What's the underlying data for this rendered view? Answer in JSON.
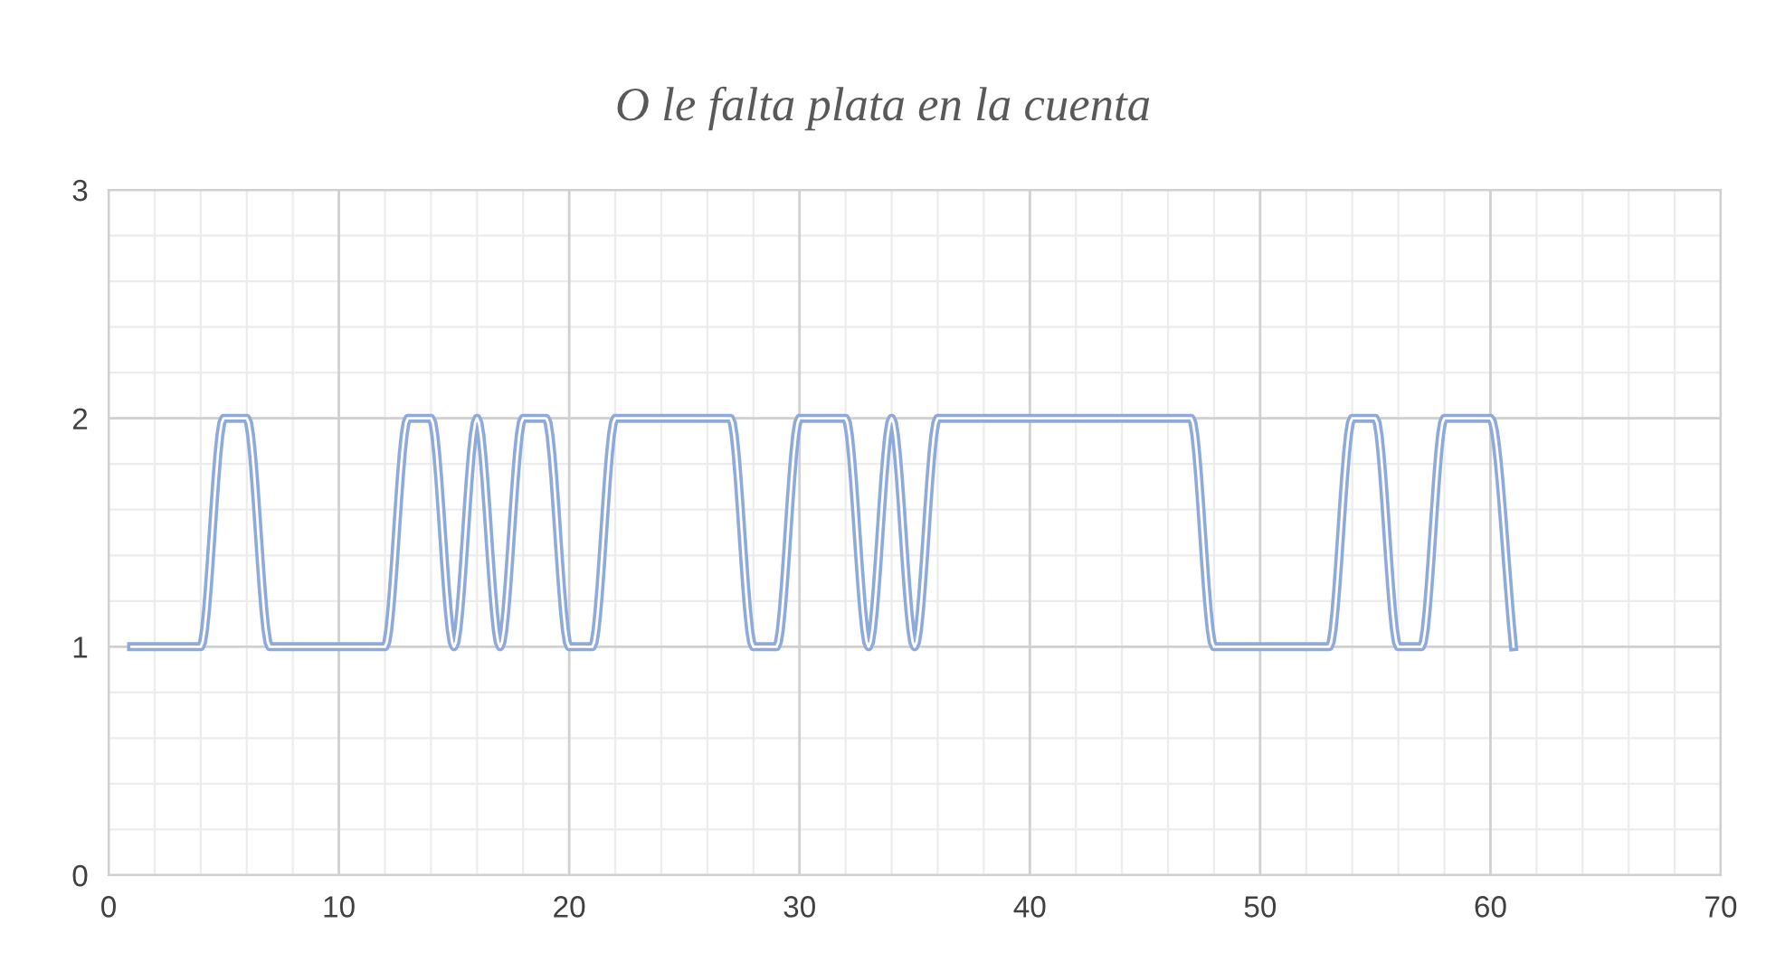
{
  "chart_data": {
    "type": "line",
    "title": "O le falta plata en la cuenta",
    "x": [
      1,
      2,
      3,
      4,
      5,
      6,
      7,
      8,
      9,
      10,
      11,
      12,
      13,
      14,
      15,
      16,
      17,
      18,
      19,
      20,
      21,
      22,
      23,
      24,
      25,
      26,
      27,
      28,
      29,
      30,
      31,
      32,
      33,
      34,
      35,
      36,
      37,
      38,
      39,
      40,
      41,
      42,
      43,
      44,
      45,
      46,
      47,
      48,
      49,
      50,
      51,
      52,
      53,
      54,
      55,
      56,
      57,
      58,
      59,
      60,
      61
    ],
    "series": [
      {
        "color": "#8eaadb",
        "values": [
          1,
          1,
          1,
          1,
          2,
          2,
          1,
          1,
          1,
          1,
          1,
          1,
          2,
          2,
          1,
          2,
          1,
          2,
          2,
          1,
          1,
          2,
          2,
          2,
          2,
          2,
          2,
          1,
          1,
          2,
          2,
          2,
          1,
          2,
          1,
          2,
          2,
          2,
          2,
          2,
          2,
          2,
          2,
          2,
          2,
          2,
          2,
          1,
          1,
          1,
          1,
          1,
          1,
          2,
          2,
          1,
          1,
          2,
          2,
          2,
          1
        ]
      }
    ],
    "xlim": [
      0,
      70
    ],
    "xticks": [
      0,
      10,
      20,
      30,
      40,
      50,
      60,
      70
    ],
    "ylim": [
      0,
      3
    ],
    "yticks": [
      0,
      1,
      2,
      3
    ],
    "grid": true,
    "marker": "none",
    "line_style": "solid",
    "legend": false
  }
}
